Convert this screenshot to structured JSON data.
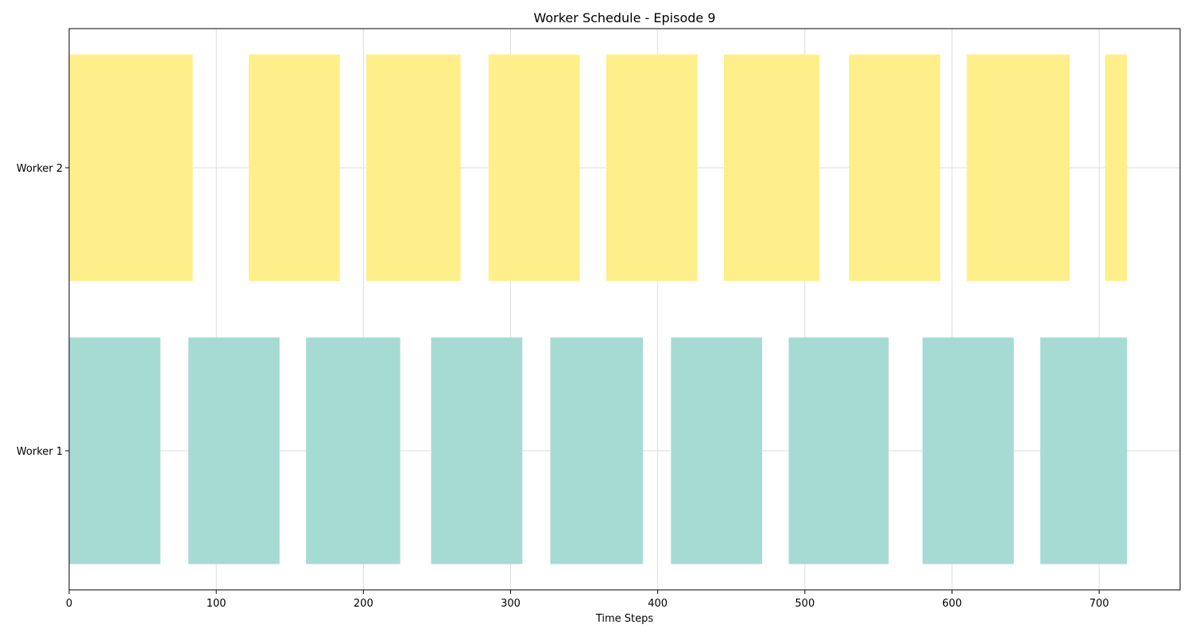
{
  "chart_data": {
    "type": "bar",
    "orientation": "horizontal",
    "title": "Worker Schedule - Episode 9",
    "xlabel": "Time Steps",
    "ylabel": "",
    "xlim": [
      0,
      755
    ],
    "xticks": [
      0,
      100,
      200,
      300,
      400,
      500,
      600,
      700
    ],
    "grid": true,
    "categories": [
      "Worker 1",
      "Worker 2"
    ],
    "series": [
      {
        "category": "Worker 1",
        "color": "#a6dbd3",
        "intervals": [
          [
            0,
            62
          ],
          [
            81,
            143
          ],
          [
            161,
            225
          ],
          [
            246,
            308
          ],
          [
            327,
            390
          ],
          [
            409,
            471
          ],
          [
            489,
            557
          ],
          [
            580,
            642
          ],
          [
            660,
            719
          ]
        ]
      },
      {
        "category": "Worker 2",
        "color": "#ffef8a",
        "intervals": [
          [
            0,
            84
          ],
          [
            122,
            184
          ],
          [
            202,
            266
          ],
          [
            285,
            347
          ],
          [
            365,
            427
          ],
          [
            445,
            510
          ],
          [
            530,
            592
          ],
          [
            610,
            680
          ],
          [
            704,
            719
          ]
        ]
      }
    ]
  }
}
